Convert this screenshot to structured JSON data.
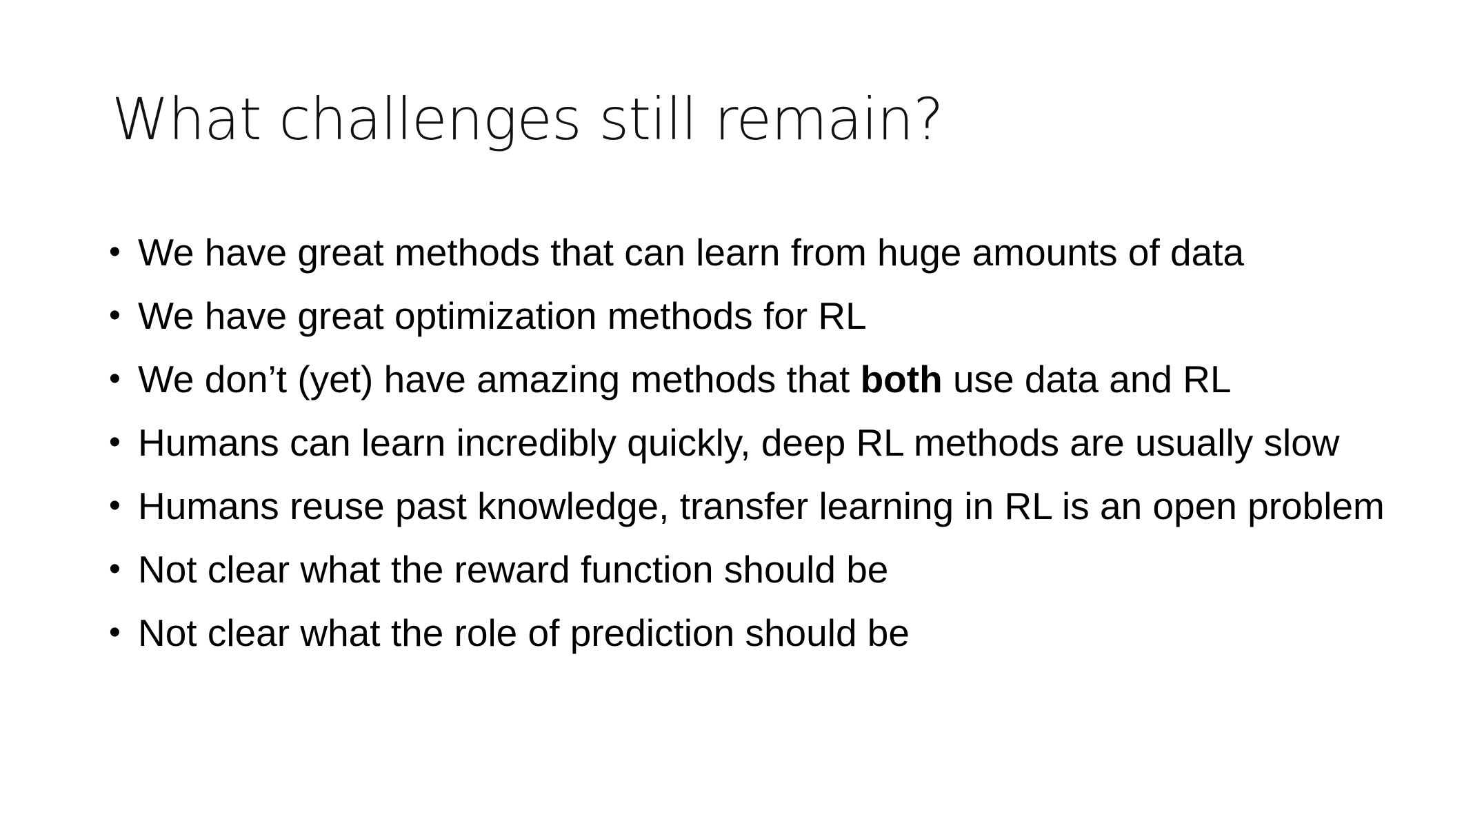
{
  "slide": {
    "title": "What challenges still remain?",
    "bullet_symbol": "•",
    "bullets": [
      {
        "text": "We have great methods that can learn from huge amounts of data"
      },
      {
        "text": "We have great optimization methods for RL"
      },
      {
        "before": "We don’t (yet) have amazing methods that ",
        "bold": "both",
        "after": " use data and RL"
      },
      {
        "text": "Humans can learn incredibly quickly, deep RL methods are usually slow"
      },
      {
        "text": "Humans reuse past knowledge, transfer learning in RL is an open problem"
      },
      {
        "text": "Not clear what the reward function should be"
      },
      {
        "text": "Not clear what the role of prediction should be"
      }
    ]
  }
}
